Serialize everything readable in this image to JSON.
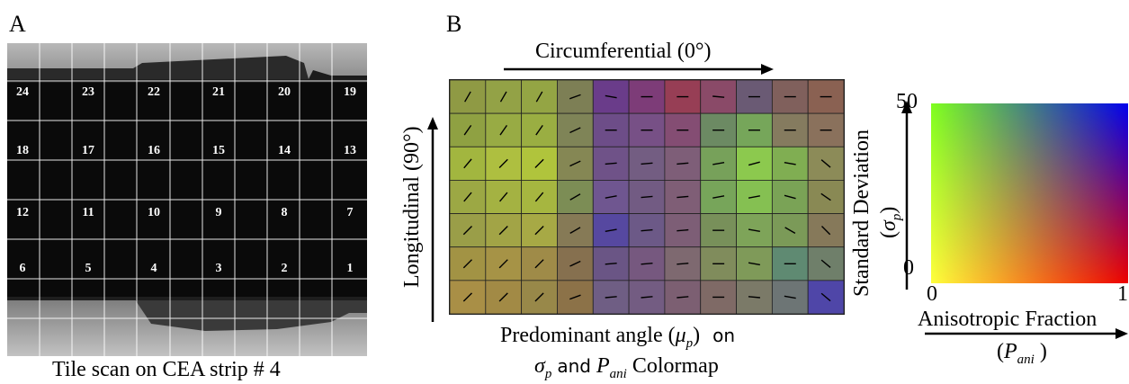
{
  "panel_a": {
    "letter": "A",
    "caption": "Tile scan on CEA strip # 4",
    "tile_rows": [
      [
        "24",
        "23",
        "22",
        "21",
        "20",
        "19"
      ],
      [
        "18",
        "17",
        "16",
        "15",
        "14",
        "13"
      ],
      [
        "12",
        "11",
        "10",
        "9",
        "8",
        "7"
      ],
      [
        "6",
        "5",
        "4",
        "3",
        "2",
        "1"
      ]
    ]
  },
  "panel_b": {
    "letter": "B",
    "top_label": "Circumferential (0°)",
    "side_label": "Longitudinal (90°)",
    "caption_line1_prefix": "Predominant angle (",
    "caption_line1_mu": "μ",
    "caption_line1_mu_sub": "p",
    "caption_line1_suffix": ")",
    "caption_line1_on": "on",
    "caption_line2_sigma": "σ",
    "caption_line2_sigma_sub": "p",
    "caption_line2_and": "and",
    "caption_line2_P": "P",
    "caption_line2_P_sub": "ani",
    "caption_line2_suffix": "Colormap",
    "grid": {
      "rows": 7,
      "cols": 11,
      "cells": [
        [
          [
            "#8f9a44",
            60
          ],
          [
            "#93a246",
            60
          ],
          [
            "#94a544",
            60
          ],
          [
            "#7d7f55",
            20
          ],
          [
            "#6a3c8a",
            -10
          ],
          [
            "#7d3c78",
            0
          ],
          [
            "#973e55",
            0
          ],
          [
            "#8a4a68",
            -5
          ],
          [
            "#6a5a74",
            0
          ],
          [
            "#80605c",
            0
          ],
          [
            "#8a6152",
            0
          ]
        ],
        [
          [
            "#8fa142",
            55
          ],
          [
            "#98ab44",
            55
          ],
          [
            "#9aae42",
            55
          ],
          [
            "#7f8457",
            25
          ],
          [
            "#6d4d88",
            0
          ],
          [
            "#775086",
            0
          ],
          [
            "#844d73",
            0
          ],
          [
            "#6c8a63",
            0
          ],
          [
            "#76a65a",
            0
          ],
          [
            "#857b5f",
            0
          ],
          [
            "#8a715c",
            0
          ]
        ],
        [
          [
            "#a2b63f",
            50
          ],
          [
            "#aebf40",
            45
          ],
          [
            "#b0c43c",
            45
          ],
          [
            "#858754",
            25
          ],
          [
            "#6f5288",
            5
          ],
          [
            "#735d82",
            5
          ],
          [
            "#7e5e78",
            5
          ],
          [
            "#77a15a",
            10
          ],
          [
            "#8cc94e",
            15
          ],
          [
            "#80ae52",
            -10
          ],
          [
            "#8c8b58",
            -40
          ]
        ],
        [
          [
            "#9ca844",
            50
          ],
          [
            "#a4b242",
            50
          ],
          [
            "#a6b640",
            50
          ],
          [
            "#7c8d55",
            30
          ],
          [
            "#6f5690",
            10
          ],
          [
            "#725b83",
            5
          ],
          [
            "#7f5e76",
            5
          ],
          [
            "#77a55a",
            10
          ],
          [
            "#85c052",
            10
          ],
          [
            "#7aa356",
            -15
          ],
          [
            "#898954",
            -35
          ]
        ],
        [
          [
            "#9a9e48",
            45
          ],
          [
            "#a2a446",
            45
          ],
          [
            "#a7a945",
            45
          ],
          [
            "#867a56",
            30
          ],
          [
            "#5648a0",
            10
          ],
          [
            "#6c5987",
            5
          ],
          [
            "#7d5e76",
            5
          ],
          [
            "#78905a",
            0
          ],
          [
            "#7ea459",
            -10
          ],
          [
            "#7b9a58",
            -30
          ],
          [
            "#86795a",
            -45
          ]
        ],
        [
          [
            "#a29344",
            45
          ],
          [
            "#a69346",
            45
          ],
          [
            "#9f8b48",
            45
          ],
          [
            "#86704f",
            25
          ],
          [
            "#6a5585",
            5
          ],
          [
            "#76587f",
            5
          ],
          [
            "#7e6970",
            5
          ],
          [
            "#808c5c",
            0
          ],
          [
            "#7f9a59",
            -10
          ],
          [
            "#5f8a72",
            0
          ],
          [
            "#6f7f6a",
            -40
          ]
        ],
        [
          [
            "#a98f46",
            45
          ],
          [
            "#a28a45",
            45
          ],
          [
            "#988849",
            45
          ],
          [
            "#8c7248",
            20
          ],
          [
            "#6f5e84",
            5
          ],
          [
            "#735c82",
            5
          ],
          [
            "#7c5f72",
            5
          ],
          [
            "#7f6a66",
            0
          ],
          [
            "#7b7a68",
            -5
          ],
          [
            "#6d7575",
            -10
          ],
          [
            "#4f46a8",
            -40
          ]
        ]
      ]
    }
  },
  "colormap": {
    "y_label": "Standard Deviation",
    "y_symbol": "σ",
    "y_symbol_sub": "p",
    "y_max": "50",
    "y_min": "0",
    "x_min": "0",
    "x_max": "1",
    "x_label": "Anisotropic Fraction",
    "x_symbol": "P",
    "x_symbol_sub": "ani",
    "corner_colors": {
      "top_left": "#7fff1e",
      "top_right": "#0000ee",
      "bottom_left": "#ffff3c",
      "bottom_right": "#ee0000"
    }
  }
}
